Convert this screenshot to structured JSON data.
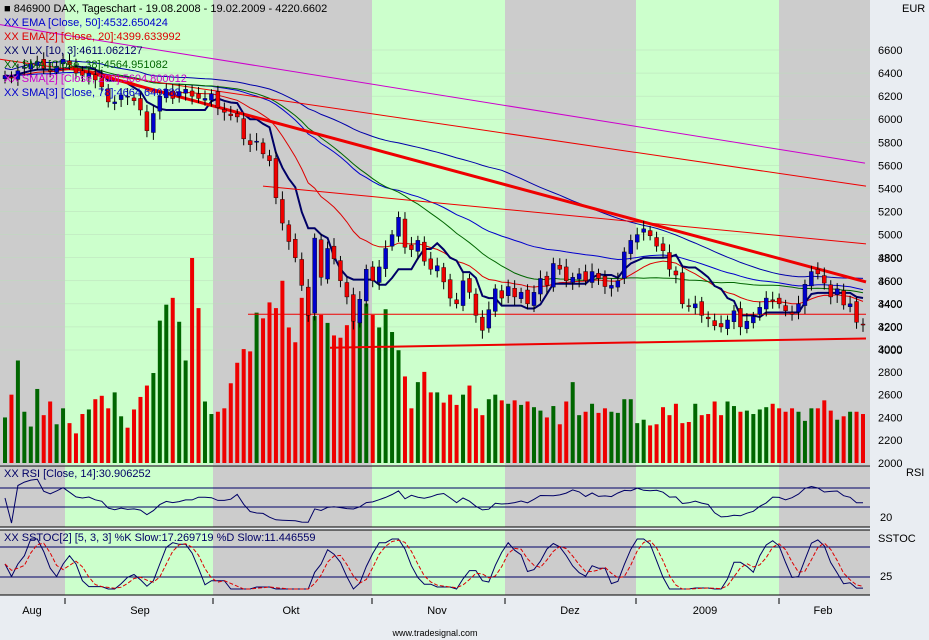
{
  "chart_data": {
    "type": "candlestick",
    "title_line": "846900  DAX, Tageschart - 19.08.2008 - 19.02.2009 - 4220.6602",
    "currency": "EUR",
    "legend": [
      {
        "text": "XX EMA [Close, 50]:4532.650424",
        "color": "#0000cc"
      },
      {
        "text": "XX EMA[2] [Close, 20]:4399.633992",
        "color": "#dd0000"
      },
      {
        "text": "XX VLX [10, 3]:4611.062127",
        "color": "#000066"
      },
      {
        "text": "XX SMA [Close, 38]:4564.951082",
        "color": "#006600"
      },
      {
        "text": "XX SMA[2] [Close, 200]:5604.800012",
        "color": "#cc00cc"
      },
      {
        "text": "XX SMA[3] [Close, 78]:4664.640388",
        "color": "#0000cc"
      }
    ],
    "price_ticks": [
      4000,
      4200,
      4400,
      4600,
      4800,
      5000,
      5200,
      5400,
      5600,
      5800,
      6000,
      6200,
      6400,
      6600
    ],
    "volume_ticks": [
      2000,
      2200,
      2400,
      2600,
      2800,
      3000,
      3200,
      3400,
      3600,
      3800
    ],
    "ylim": [
      3950,
      6950
    ],
    "months": [
      "Aug",
      "Sep",
      "Okt",
      "Nov",
      "Dez",
      "2009",
      "Feb"
    ],
    "closes": [
      6380,
      6360,
      6420,
      6450,
      6480,
      6500,
      6440,
      6420,
      6460,
      6520,
      6470,
      6400,
      6380,
      6400,
      6340,
      6280,
      6150,
      6150,
      6210,
      6200,
      6160,
      6080,
      5900,
      6050,
      6200,
      6260,
      6180,
      6240,
      6260,
      6200,
      6180,
      6180,
      6220,
      6100,
      6060,
      6030,
      6020,
      5830,
      5780,
      5810,
      5700,
      5640,
      5320,
      5100,
      4940,
      4800,
      4560,
      4300,
      4970,
      4630,
      4880,
      4790,
      4600,
      4460,
      4250,
      4440,
      4700,
      4600,
      4720,
      4880,
      5000,
      5150,
      4890,
      4870,
      4950,
      4770,
      4700,
      4730,
      4590,
      4450,
      4400,
      4600,
      4500,
      4300,
      4170,
      4350,
      4530,
      4450,
      4550,
      4460,
      4500,
      4400,
      4500,
      4620,
      4560,
      4750,
      4700,
      4600,
      4630,
      4660,
      4600,
      4680,
      4620,
      4550,
      4560,
      4600,
      4850,
      4950,
      5000,
      5050,
      4990,
      4900,
      4860,
      4700,
      4650,
      4400,
      4380,
      4400,
      4300,
      4270,
      4210,
      4200,
      4260,
      4340,
      4200,
      4250,
      4290,
      4370,
      4450,
      4430,
      4400,
      4340,
      4310,
      4400,
      4570,
      4680,
      4660,
      4580,
      4460,
      4530,
      4390,
      4400,
      4240,
      4221
    ],
    "volumes": [
      2400,
      2600,
      2900,
      2450,
      2320,
      2650,
      2420,
      2540,
      2340,
      2480,
      2350,
      2260,
      2430,
      2470,
      2560,
      2590,
      2480,
      2620,
      2410,
      2310,
      2470,
      2580,
      2680,
      2790,
      3250,
      3390,
      3450,
      3240,
      2900,
      3800,
      3360,
      2540,
      2430,
      2450,
      2480,
      2700,
      2880,
      3000,
      2980,
      3320,
      3270,
      3410,
      3360,
      3600,
      3190,
      3060,
      3450,
      3310,
      3290,
      3300,
      3230,
      3120,
      3100,
      3210,
      3340,
      3300,
      3400,
      3300,
      3190,
      3350,
      3150,
      2990,
      2760,
      2480,
      2710,
      2800,
      2620,
      2620,
      2530,
      2600,
      2510,
      2600,
      2680,
      2480,
      2420,
      2560,
      2600,
      2550,
      2520,
      2550,
      2510,
      2540,
      2490,
      2460,
      2400,
      2500,
      2340,
      2540,
      2710,
      2420,
      2450,
      2520,
      2440,
      2480,
      2450,
      2440,
      2560,
      2560,
      2350,
      2380,
      2330,
      2340,
      2490,
      2420,
      2520,
      2350,
      2360,
      2520,
      2420,
      2430,
      2540,
      2420,
      2540,
      2500,
      2450,
      2460,
      2430,
      2470,
      2490,
      2520,
      2480,
      2450,
      2480,
      2450,
      2370,
      2480,
      2480,
      2550,
      2460,
      2380,
      2410,
      2450,
      2450,
      2430
    ],
    "rsi_label": "XX RSI [Close, 14]:30.906252",
    "rsi_tick": "20",
    "rsi_title": "RSI",
    "sstoc_label": "XX SSTOC[2] [5, 3, 3] %K Slow:17.269719  %D Slow:11.446559",
    "sstoc_tick": "25",
    "sstoc_title": "SSTOC",
    "source": "www.tradesignal.com"
  }
}
